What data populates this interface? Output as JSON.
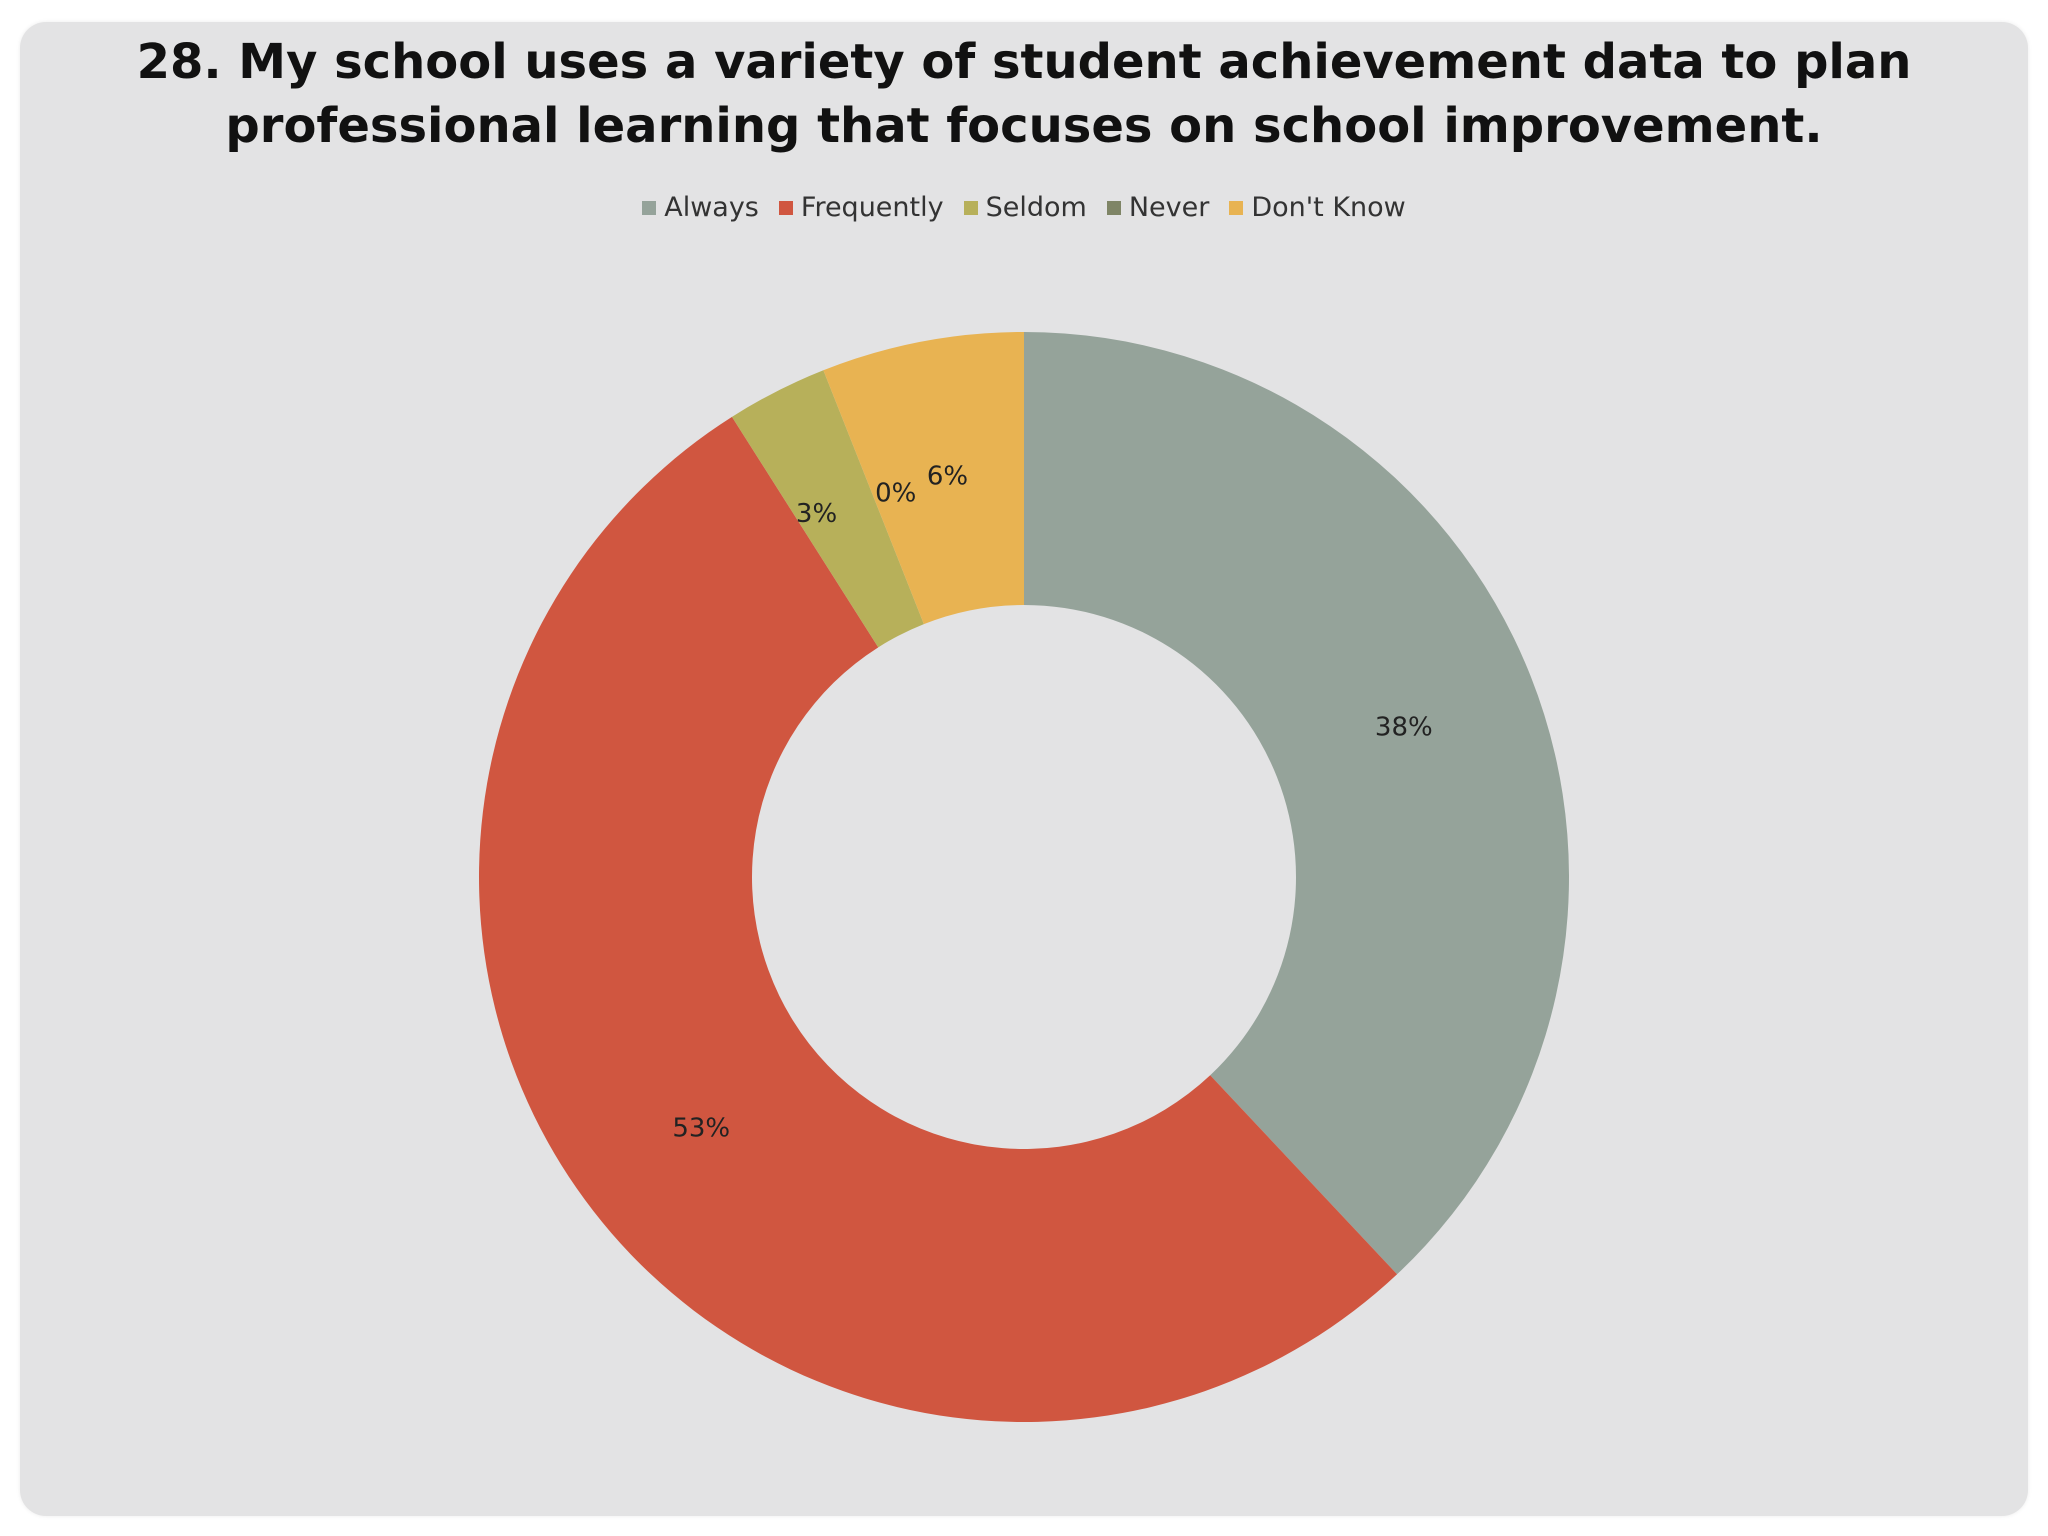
{
  "chart_data": {
    "type": "pie",
    "style": "donut",
    "title": "28. My school uses a variety of student achievement data to plan professional learning that focuses on school improvement.",
    "legend_position": "top",
    "categories": [
      "Always",
      "Frequently",
      "Seldom",
      "Never",
      "Don't Know"
    ],
    "values": [
      38,
      53,
      3,
      0,
      6
    ],
    "data_labels": [
      "38%",
      "53%",
      "3%",
      "0%",
      "6%"
    ],
    "colors": [
      "#95a39a",
      "#d05640",
      "#b7b05a",
      "#7f8566",
      "#e8b352"
    ]
  }
}
